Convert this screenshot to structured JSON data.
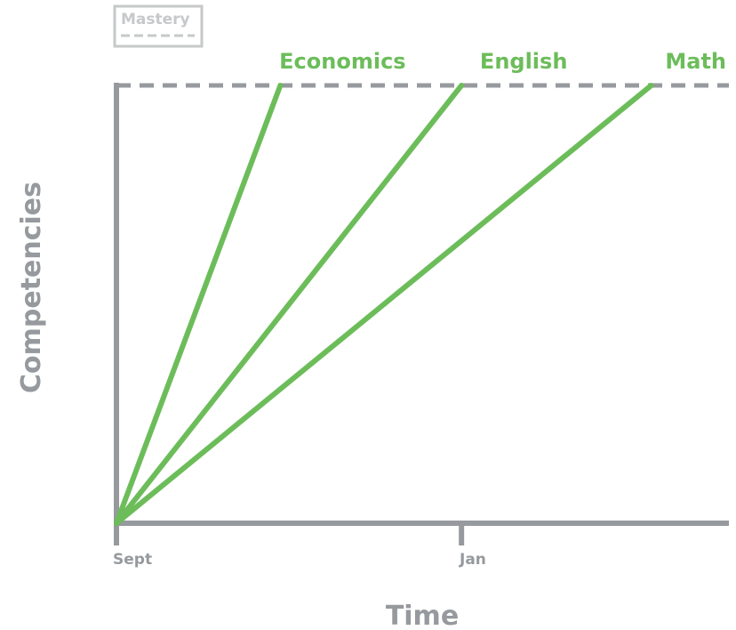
{
  "chart_data": {
    "type": "line",
    "xlabel": "Time",
    "ylabel": "Competencies",
    "x_ticks": [
      {
        "label": "Sept",
        "value": 0
      },
      {
        "label": "Jan",
        "value": 4
      }
    ],
    "xlim": [
      0,
      7.1
    ],
    "ylim": [
      0,
      1
    ],
    "grid": false,
    "legend": {
      "position": "top-left",
      "entries": [
        {
          "label": "Mastery",
          "style": "dashed"
        }
      ]
    },
    "reference_line": {
      "name": "Mastery",
      "y": 1,
      "style": "dashed"
    },
    "series": [
      {
        "name": "Economics",
        "x": [
          0,
          1.9
        ],
        "y": [
          0,
          1
        ]
      },
      {
        "name": "English",
        "x": [
          0,
          4.0
        ],
        "y": [
          0,
          1
        ]
      },
      {
        "name": "Math",
        "x": [
          0,
          6.2
        ],
        "y": [
          0,
          1
        ]
      }
    ]
  },
  "colors": {
    "series": "#6cbd5a",
    "axis": "#96999d",
    "legend": "#c6c8ca"
  }
}
